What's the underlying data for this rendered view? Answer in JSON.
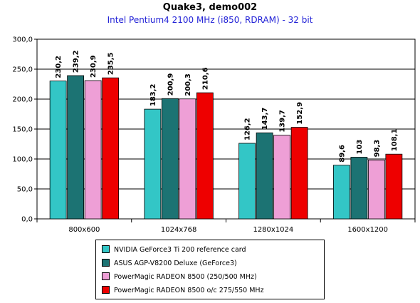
{
  "chart_data": {
    "type": "bar",
    "title": "Quake3, demo002",
    "subtitle": "Intel Pentium4 2100 MHz (i850, RDRAM) - 32 bit",
    "categories": [
      "800x600",
      "1024x768",
      "1280x1024",
      "1600x1200"
    ],
    "ylim": [
      0,
      300
    ],
    "yticks": [
      0,
      50,
      100,
      150,
      200,
      250,
      300
    ],
    "ytick_labels": [
      "0,0",
      "50,0",
      "100,0",
      "150,0",
      "200,0",
      "250,0",
      "300,0"
    ],
    "grid": true,
    "legend_position": "bottom",
    "series": [
      {
        "name": "NVIDIA GeForce3 Ti 200 reference card",
        "color": "#33c6c6",
        "values": [
          230.2,
          183.2,
          126.2,
          89.6
        ],
        "labels": [
          "230,2",
          "183,2",
          "126,2",
          "89,6"
        ]
      },
      {
        "name": "ASUS AGP-V8200 Deluxe (GeForce3)",
        "color": "#1c7373",
        "values": [
          239.2,
          200.9,
          143.7,
          103
        ],
        "labels": [
          "239,2",
          "200,9",
          "143,7",
          "103"
        ]
      },
      {
        "name": "PowerMagic RADEON 8500 (250/500 MHz)",
        "color": "#ee9fd6",
        "values": [
          230.9,
          200.3,
          139.7,
          98.3
        ],
        "labels": [
          "230,9",
          "200,3",
          "139,7",
          "98,3"
        ]
      },
      {
        "name": "PowerMagic RADEON 8500 o/c 275/550 MHz",
        "color": "#ee0000",
        "values": [
          235.5,
          210.6,
          152.9,
          108.1
        ],
        "labels": [
          "235,5",
          "210,6",
          "152,9",
          "108,1"
        ]
      }
    ]
  }
}
